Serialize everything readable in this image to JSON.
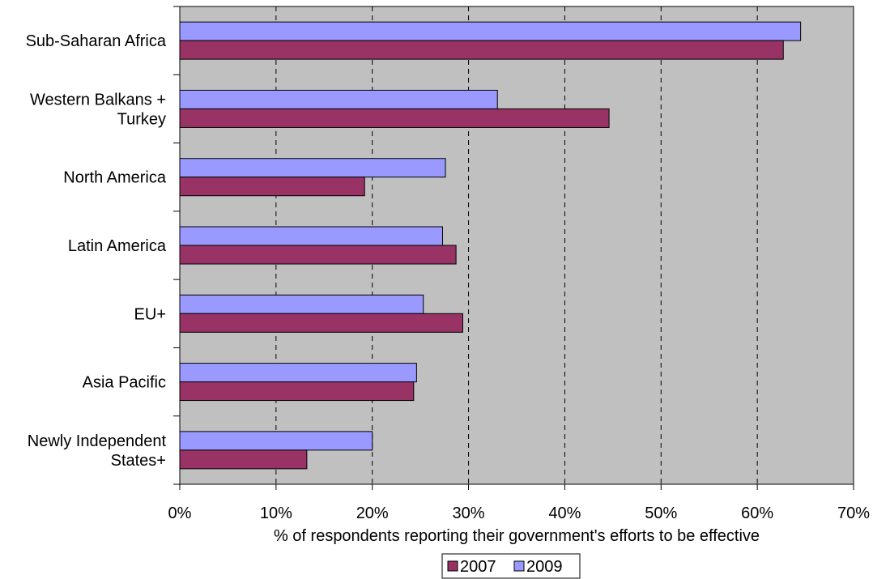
{
  "chart_data": {
    "type": "bar",
    "orientation": "horizontal",
    "categories": [
      "Sub-Saharan Africa",
      "Western Balkans + Turkey",
      "North America",
      "Latin America",
      "EU+",
      "Asia Pacific",
      "Newly Independent States+"
    ],
    "category_label_lines": [
      [
        "Sub-Saharan Africa"
      ],
      [
        "Western Balkans +",
        "Turkey"
      ],
      [
        "North America"
      ],
      [
        "Latin America"
      ],
      [
        "EU+"
      ],
      [
        "Asia Pacific"
      ],
      [
        "Newly Independent",
        "States+"
      ]
    ],
    "series": [
      {
        "name": "2009",
        "color": "#9999ff",
        "values": [
          64.5,
          33.0,
          27.6,
          27.3,
          25.3,
          24.6,
          20.0
        ]
      },
      {
        "name": "2007",
        "color": "#993366",
        "values": [
          62.7,
          44.6,
          19.2,
          28.7,
          29.4,
          24.3,
          13.2
        ]
      }
    ],
    "xlabel": "% of respondents reporting their government's efforts to be effective",
    "ylabel": "",
    "xlim": [
      0,
      70
    ],
    "x_ticks": [
      0,
      10,
      20,
      30,
      40,
      50,
      60,
      70
    ],
    "x_tick_labels": [
      "0%",
      "10%",
      "20%",
      "30%",
      "40%",
      "50%",
      "60%",
      "70%"
    ],
    "plot_background": "#c0c0c0",
    "grid": "vertical dashed",
    "legend": {
      "placement": "bottom",
      "entries": [
        {
          "name": "2007",
          "color": "#993366"
        },
        {
          "name": "2009",
          "color": "#9999ff"
        }
      ]
    }
  }
}
